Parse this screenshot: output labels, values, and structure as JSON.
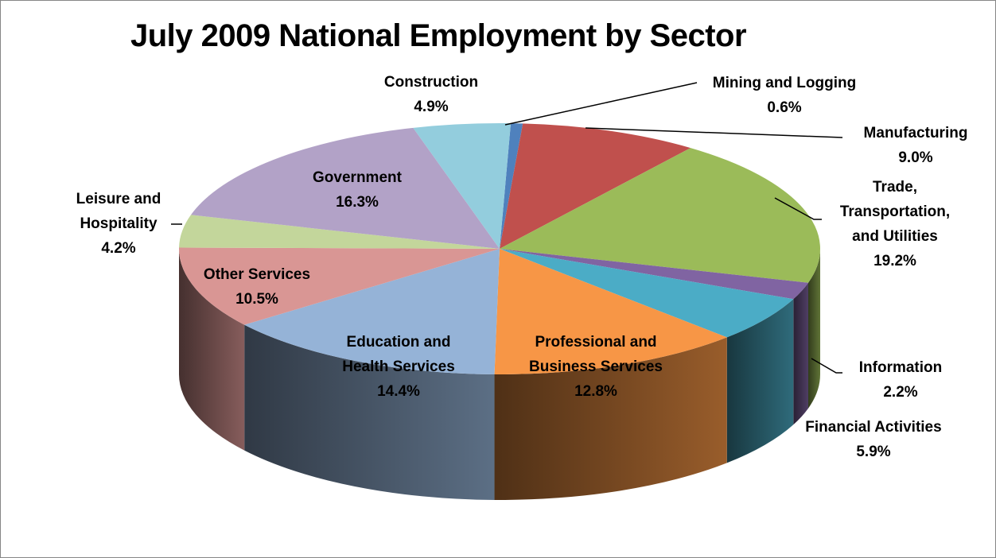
{
  "chart_data": {
    "type": "pie",
    "title": "July 2009 National Employment by Sector",
    "slices": [
      {
        "label": "Mining and Logging",
        "value": 0.6,
        "value_label": "0.6%",
        "color": "#4f81bd"
      },
      {
        "label": "Manufacturing",
        "value": 9.0,
        "value_label": "9.0%",
        "color": "#c0504d"
      },
      {
        "label": "Trade, Transportation, and Utilities",
        "value": 19.2,
        "value_label": "19.2%",
        "color": "#9bbb59"
      },
      {
        "label": "Information",
        "value": 2.2,
        "value_label": "2.2%",
        "color": "#8064a2"
      },
      {
        "label": "Financial Activities",
        "value": 5.9,
        "value_label": "5.9%",
        "color": "#4bacc6"
      },
      {
        "label": "Professional and Business Services",
        "value": 12.8,
        "value_label": "12.8%",
        "color": "#f79646"
      },
      {
        "label": "Education and Health Services",
        "value": 14.4,
        "value_label": "14.4%",
        "color": "#95b3d7"
      },
      {
        "label": "Other Services",
        "value": 10.5,
        "value_label": "10.5%",
        "color": "#d99694"
      },
      {
        "label": "Leisure and Hospitality",
        "value": 4.2,
        "value_label": "4.2%",
        "color": "#c3d69b"
      },
      {
        "label": "Government",
        "value": 16.3,
        "value_label": "16.3%",
        "color": "#b2a2c7"
      },
      {
        "label": "Construction",
        "value": 4.9,
        "value_label": "4.9%",
        "color": "#93cddd"
      }
    ]
  }
}
